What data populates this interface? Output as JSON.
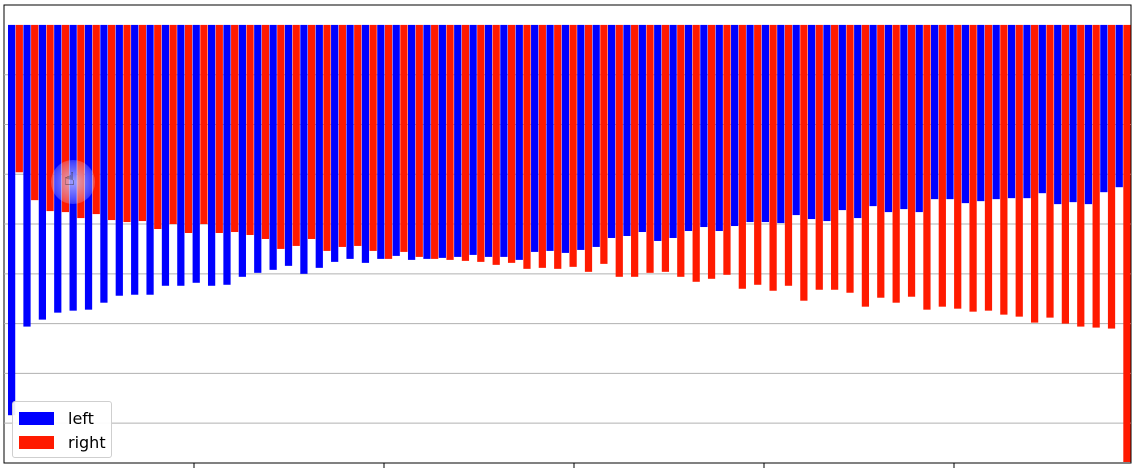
{
  "chart_data": {
    "type": "bar",
    "subtype": "paired-divergent",
    "grid": true,
    "legend_placement": "lower-left",
    "ylim": [
      -44,
      2
    ],
    "series": [
      {
        "name": "left",
        "color": "#0000ff",
        "values": [
          39.2,
          30.3,
          29.6,
          28.9,
          28.7,
          28.6,
          27.9,
          27.2,
          27.1,
          27.1,
          26.2,
          26.2,
          25.9,
          26.2,
          26.1,
          25.3,
          24.9,
          24.6,
          24.2,
          25.0,
          24.4,
          23.8,
          23.5,
          23.9,
          23.5,
          23.2,
          23.6,
          23.5,
          23.4,
          23.3,
          23.1,
          23.3,
          23.3,
          23.6,
          22.8,
          22.7,
          22.9,
          22.6,
          22.3,
          21.4,
          21.2,
          20.8,
          21.7,
          21.4,
          20.7,
          20.3,
          20.7,
          20.2,
          19.8,
          19.8,
          19.9,
          19.1,
          19.5,
          19.7,
          18.6,
          19.4,
          18.2,
          18.8,
          18.5,
          18.8,
          17.5,
          17.5,
          17.9,
          17.7,
          17.5,
          17.4,
          17.4,
          16.9,
          18.0,
          17.8,
          18.0,
          16.8,
          16.3
        ]
      },
      {
        "name": "right",
        "color": "#ff1a00",
        "values": [
          14.8,
          17.6,
          18.7,
          18.8,
          19.4,
          19.0,
          19.6,
          19.8,
          19.7,
          20.5,
          20.0,
          20.9,
          20.0,
          20.9,
          20.8,
          21.1,
          21.5,
          22.5,
          22.2,
          21.5,
          22.7,
          22.3,
          22.2,
          22.7,
          23.5,
          22.8,
          23.3,
          23.5,
          23.6,
          23.7,
          23.8,
          24.1,
          23.9,
          24.5,
          24.4,
          24.5,
          24.3,
          24.8,
          24.0,
          25.3,
          25.3,
          24.9,
          24.8,
          25.3,
          25.8,
          25.5,
          25.1,
          26.5,
          26.1,
          26.7,
          26.2,
          27.7,
          26.6,
          26.6,
          26.9,
          28.3,
          27.4,
          27.9,
          27.3,
          28.6,
          28.3,
          28.5,
          28.8,
          28.7,
          29.1,
          29.3,
          29.9,
          29.4,
          30.0,
          30.3,
          30.4,
          30.5,
          43.9
        ]
      }
    ]
  }
}
